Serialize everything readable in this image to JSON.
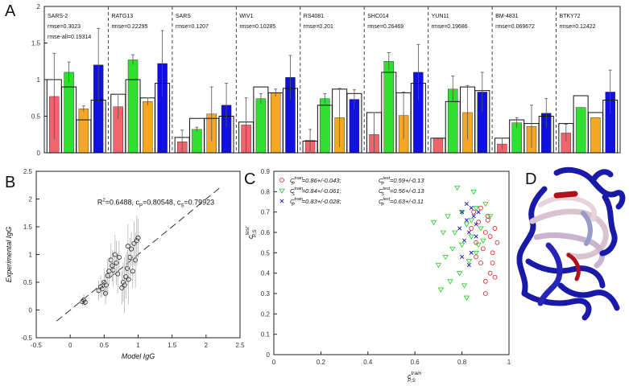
{
  "panel_labels": {
    "a": "A",
    "b": "B",
    "c": "C",
    "d": "D"
  },
  "colors": {
    "red": "#f2646c",
    "green": "#2fe02f",
    "orange": "#f5a623",
    "blue": "#1010e0",
    "protein_blue": "#1a1aa8"
  },
  "chart_data": [
    {
      "id": "A",
      "type": "bar",
      "ylim": [
        0,
        2
      ],
      "yticks": [
        0,
        0.5,
        1,
        1.5,
        2
      ],
      "ytick_labels": [
        "0",
        "0.5",
        "1",
        "1.5",
        "2"
      ],
      "groups": [
        {
          "name": "SARS-2",
          "rmse": "rmse=0.3023",
          "extra": "rmse-all=0.19314",
          "bars": [
            {
              "c": "red",
              "v": 0.77,
              "e": 0.59,
              "exp": 1.0
            },
            {
              "c": "green",
              "v": 1.1,
              "e": 0.14,
              "exp": 0.9
            },
            {
              "c": "orange",
              "v": 0.6,
              "e": 0.04,
              "exp": 0.45
            },
            {
              "c": "blue",
              "v": 1.2,
              "e": 0.5,
              "exp": 0.72
            }
          ]
        },
        {
          "name": "RATG13",
          "rmse": "rmse=0.22295",
          "extra": "",
          "bars": [
            {
              "c": "red",
              "v": 0.63,
              "e": 0.17,
              "exp": 0.8
            },
            {
              "c": "green",
              "v": 1.27,
              "e": 0.07,
              "exp": 1.0
            },
            {
              "c": "orange",
              "v": 0.7,
              "e": 0.05,
              "exp": 0.75
            },
            {
              "c": "blue",
              "v": 1.22,
              "e": 0.45,
              "exp": 0.95
            }
          ]
        },
        {
          "name": "SARS",
          "rmse": "rmse=0.1207",
          "extra": "",
          "bars": [
            {
              "c": "red",
              "v": 0.15,
              "e": 0.16,
              "exp": 0.21
            },
            {
              "c": "green",
              "v": 0.32,
              "e": 0.03,
              "exp": 0.47
            },
            {
              "c": "orange",
              "v": 0.53,
              "e": 0.37,
              "exp": 0.47
            },
            {
              "c": "blue",
              "v": 0.65,
              "e": 0.3,
              "exp": 0.5
            }
          ]
        },
        {
          "name": "WIV1",
          "rmse": "rmse=0.10285",
          "extra": "",
          "bars": [
            {
              "c": "red",
              "v": 0.38,
              "e": 0.37,
              "exp": 0.42
            },
            {
              "c": "green",
              "v": 0.74,
              "e": 0.07,
              "exp": 0.9
            },
            {
              "c": "orange",
              "v": 0.82,
              "e": 0.05,
              "exp": 0.82
            },
            {
              "c": "blue",
              "v": 1.03,
              "e": 0.3,
              "exp": 0.88
            }
          ]
        },
        {
          "name": "RS4081",
          "rmse": "rmse=0.201",
          "extra": "",
          "bars": [
            {
              "c": "red",
              "v": 0.17,
              "e": 0.15,
              "exp": 0.16
            },
            {
              "c": "green",
              "v": 0.74,
              "e": 0.07,
              "exp": 0.65
            },
            {
              "c": "orange",
              "v": 0.48,
              "e": 0.4,
              "exp": 0.87
            },
            {
              "c": "blue",
              "v": 0.73,
              "e": 0.13,
              "exp": 0.81
            }
          ]
        },
        {
          "name": "SHC014",
          "rmse": "rmse=0.26469",
          "extra": "",
          "bars": [
            {
              "c": "red",
              "v": 0.25,
              "e": 0.3,
              "exp": 0.55
            },
            {
              "c": "green",
              "v": 1.25,
              "e": 0.12,
              "exp": 1.1
            },
            {
              "c": "orange",
              "v": 0.51,
              "e": 0.32,
              "exp": 0.82
            },
            {
              "c": "blue",
              "v": 1.1,
              "e": 0.38,
              "exp": 0.95
            }
          ]
        },
        {
          "name": "YUN11",
          "rmse": "rmse=0.19686",
          "extra": "",
          "bars": [
            {
              "c": "red",
              "v": 0.2,
              "e": 0.0,
              "exp": 0.2
            },
            {
              "c": "green",
              "v": 0.87,
              "e": 0.18,
              "exp": 0.7
            },
            {
              "c": "orange",
              "v": 0.55,
              "e": 0.37,
              "exp": 0.9
            },
            {
              "c": "blue",
              "v": 0.83,
              "e": 0.27,
              "exp": 0.85
            }
          ]
        },
        {
          "name": "BM-4831",
          "rmse": "rmse=0.069672",
          "extra": "",
          "bars": [
            {
              "c": "red",
              "v": 0.12,
              "e": 0.08,
              "exp": 0.2
            },
            {
              "c": "green",
              "v": 0.41,
              "e": 0.07,
              "exp": 0.45
            },
            {
              "c": "orange",
              "v": 0.36,
              "e": 0.29,
              "exp": 0.4
            },
            {
              "c": "blue",
              "v": 0.54,
              "e": 0.2,
              "exp": 0.5
            }
          ]
        },
        {
          "name": "BTKY72",
          "rmse": "rmse=0.12422",
          "extra": "",
          "bars": [
            {
              "c": "red",
              "v": 0.27,
              "e": 0.12,
              "exp": 0.4
            },
            {
              "c": "green",
              "v": 0.62,
              "e": 0.0,
              "exp": 0.78
            },
            {
              "c": "orange",
              "v": 0.48,
              "e": 0.0,
              "exp": 0.55
            },
            {
              "c": "blue",
              "v": 0.83,
              "e": 0.3,
              "exp": 0.72
            }
          ]
        }
      ]
    },
    {
      "id": "B",
      "type": "scatter",
      "xlabel": "Model IgG",
      "ylabel": "Experimental IgG",
      "xlim": [
        -0.5,
        2.5
      ],
      "ylim": [
        -0.5,
        2.5
      ],
      "xticks": [
        -0.5,
        0,
        0.5,
        1,
        1.5,
        2,
        2.5
      ],
      "xtick_labels": [
        "-0.5",
        "0",
        "0.5",
        "1",
        "1.5",
        "2",
        "2.5"
      ],
      "yticks": [
        -0.5,
        0,
        0.5,
        1,
        1.5,
        2,
        2.5
      ],
      "ytick_labels": [
        "-0.5",
        "0",
        "0.5",
        "1",
        "1.5",
        "2",
        "2.5"
      ],
      "annotation": {
        "r2_prefix": "R",
        "r2_sup": "2",
        "r2_value": "=0.6488, c",
        "cp_sub": "P",
        "cp_value": "=0.80548, c",
        "cs_sub": "S",
        "cs_value": "=0.79923"
      },
      "points": [
        [
          0.18,
          0.15,
          0.08
        ],
        [
          0.2,
          0.18,
          0.1
        ],
        [
          0.22,
          0.14,
          0.09
        ],
        [
          0.42,
          0.35,
          0.18
        ],
        [
          0.45,
          0.42,
          0.2
        ],
        [
          0.47,
          0.38,
          0.15
        ],
        [
          0.5,
          0.5,
          0.25
        ],
        [
          0.52,
          0.3,
          0.2
        ],
        [
          0.53,
          0.45,
          0.22
        ],
        [
          0.55,
          0.62,
          0.3
        ],
        [
          0.57,
          0.7,
          0.25
        ],
        [
          0.6,
          0.9,
          0.3
        ],
        [
          0.62,
          0.8,
          0.28
        ],
        [
          0.63,
          0.72,
          0.3
        ],
        [
          0.66,
          1.0,
          0.35
        ],
        [
          0.68,
          0.85,
          0.4
        ],
        [
          0.7,
          0.65,
          0.35
        ],
        [
          0.72,
          0.95,
          0.3
        ],
        [
          0.78,
          0.5,
          0.35
        ],
        [
          0.8,
          0.45,
          0.5
        ],
        [
          0.82,
          0.6,
          0.4
        ],
        [
          0.84,
          0.75,
          0.3
        ],
        [
          0.86,
          0.55,
          0.45
        ],
        [
          0.88,
          0.95,
          0.35
        ],
        [
          0.9,
          1.1,
          0.3
        ],
        [
          0.92,
          0.7,
          0.3
        ],
        [
          0.94,
          1.2,
          0.4
        ],
        [
          0.96,
          0.9,
          0.5
        ],
        [
          0.98,
          1.25,
          0.45
        ],
        [
          1.0,
          1.3,
          0.35
        ],
        [
          0.85,
          1.15,
          0.4
        ],
        [
          0.76,
          0.4,
          0.3
        ]
      ]
    },
    {
      "id": "C",
      "type": "scatter",
      "xlabel_main": "c",
      "xlabel_sup": "train",
      "xlabel_sub": "P,S",
      "ylabel_main": "c",
      "ylabel_sup": "test",
      "ylabel_sub": "P,S",
      "xlim": [
        0,
        1
      ],
      "ylim": [
        0,
        0.9
      ],
      "xticks": [
        0,
        0.2,
        0.4,
        0.6,
        0.8,
        1
      ],
      "xtick_labels": [
        "0",
        "0.2",
        "0.4",
        "0.6",
        "0.8",
        "1"
      ],
      "yticks": [
        0,
        0.1,
        0.2,
        0.3,
        0.4,
        0.5,
        0.6,
        0.7,
        0.8,
        0.9
      ],
      "ytick_labels": [
        "0",
        "0.1",
        "0.2",
        "0.3",
        "0.4",
        "0.5",
        "0.6",
        "0.7",
        "0.8",
        "0.9"
      ],
      "legend": [
        {
          "marker": "circle",
          "color": "#e02020",
          "sym": "C",
          "sub": "P",
          "train": "=0.86+/-0.043;",
          "test": "=0.59+/-0.13"
        },
        {
          "marker": "triangle",
          "color": "#22cc22",
          "sym": "C",
          "sub": "S",
          "train": "=0.84+/-0.061;",
          "test": "=0.56+/-0.13"
        },
        {
          "marker": "x",
          "color": "#2020c0",
          "sym": "C",
          "sub": "P",
          "train": "=0.83+/-0.028;",
          "test": "=0.63+/-0.11"
        }
      ],
      "series": [
        {
          "marker": "circle",
          "color": "#e02020",
          "points": [
            [
              0.9,
              0.36
            ],
            [
              0.92,
              0.4
            ],
            [
              0.88,
              0.45
            ],
            [
              0.93,
              0.5
            ],
            [
              0.86,
              0.55
            ],
            [
              0.9,
              0.6
            ],
            [
              0.94,
              0.62
            ],
            [
              0.87,
              0.65
            ],
            [
              0.91,
              0.68
            ],
            [
              0.85,
              0.7
            ],
            [
              0.95,
              0.55
            ],
            [
              0.89,
              0.52
            ],
            [
              0.92,
              0.58
            ],
            [
              0.84,
              0.62
            ],
            [
              0.88,
              0.72
            ],
            [
              0.93,
              0.45
            ],
            [
              0.9,
              0.3
            ],
            [
              0.86,
              0.48
            ],
            [
              0.91,
              0.66
            ],
            [
              0.94,
              0.38
            ]
          ]
        },
        {
          "marker": "triangle",
          "color": "#22cc22",
          "points": [
            [
              0.7,
              0.44
            ],
            [
              0.72,
              0.6
            ],
            [
              0.74,
              0.68
            ],
            [
              0.76,
              0.52
            ],
            [
              0.78,
              0.82
            ],
            [
              0.8,
              0.7
            ],
            [
              0.82,
              0.64
            ],
            [
              0.84,
              0.58
            ],
            [
              0.86,
              0.5
            ],
            [
              0.88,
              0.62
            ],
            [
              0.9,
              0.74
            ],
            [
              0.83,
              0.46
            ],
            [
              0.79,
              0.4
            ],
            [
              0.85,
              0.8
            ],
            [
              0.87,
              0.54
            ],
            [
              0.81,
              0.34
            ],
            [
              0.75,
              0.36
            ],
            [
              0.92,
              0.68
            ],
            [
              0.89,
              0.56
            ],
            [
              0.77,
              0.6
            ],
            [
              0.73,
              0.48
            ],
            [
              0.68,
              0.65
            ],
            [
              0.84,
              0.66
            ],
            [
              0.86,
              0.72
            ],
            [
              0.8,
              0.54
            ],
            [
              0.82,
              0.28
            ],
            [
              0.71,
              0.32
            ]
          ]
        },
        {
          "marker": "x",
          "color": "#2020c0",
          "points": [
            [
              0.8,
              0.7
            ],
            [
              0.82,
              0.66
            ],
            [
              0.84,
              0.72
            ],
            [
              0.86,
              0.64
            ],
            [
              0.83,
              0.6
            ],
            [
              0.85,
              0.68
            ],
            [
              0.81,
              0.56
            ],
            [
              0.87,
              0.7
            ],
            [
              0.79,
              0.62
            ],
            [
              0.84,
              0.5
            ],
            [
              0.82,
              0.74
            ],
            [
              0.86,
              0.58
            ],
            [
              0.8,
              0.48
            ],
            [
              0.83,
              0.44
            ]
          ]
        }
      ]
    }
  ]
}
